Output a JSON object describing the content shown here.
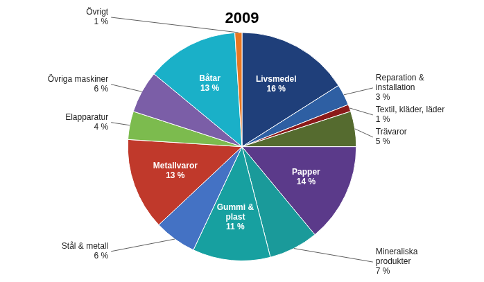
{
  "chart_data": {
    "type": "pie",
    "title": "2009",
    "categories": [
      "Livsmedel",
      "Reparation &\ninstallation",
      "Textil, kläder, läder",
      "Trävaror",
      "Papper",
      "Mineraliska\nprodukter",
      "Gummi &\nplast",
      "Stål & metall",
      "Metallvaror",
      "Elapparatur",
      "Övriga maskiner",
      "Båtar",
      "Övrigt"
    ],
    "values": [
      16,
      3,
      1,
      5,
      14,
      7,
      11,
      6,
      13,
      4,
      6,
      13,
      1
    ],
    "value_labels": [
      "16 %",
      "3 %",
      "1 %",
      "5 %",
      "14 %",
      "7 %",
      "11 %",
      "6 %",
      "13 %",
      "4 %",
      "6 %",
      "13 %",
      "1 %"
    ],
    "colors": [
      "#1F3F7A",
      "#2E5FA3",
      "#8B1A1A",
      "#556B2F",
      "#5B3A8A",
      "#1A9A9A",
      "#17A0A0",
      "#4472C4",
      "#C0392B",
      "#7CBB4E",
      "#7B5EA7",
      "#1AB0C8",
      "#E87722"
    ],
    "data_labels": true
  }
}
